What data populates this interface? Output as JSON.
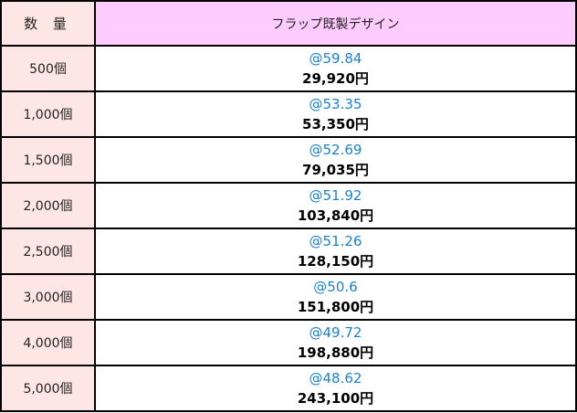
{
  "header": {
    "quantity": "数 量",
    "product": "フラップ既製デザイン"
  },
  "colors": {
    "quantity_bg": "#ffe6e6",
    "header_bg": "#ffccff",
    "unit_price": "#1a7fd0"
  },
  "rows": [
    {
      "qty": "500個",
      "unit": "@59.84",
      "total": "29,920円"
    },
    {
      "qty": "1,000個",
      "unit": "@53.35",
      "total": "53,350円"
    },
    {
      "qty": "1,500個",
      "unit": "@52.69",
      "total": "79,035円"
    },
    {
      "qty": "2,000個",
      "unit": "@51.92",
      "total": "103,840円"
    },
    {
      "qty": "2,500個",
      "unit": "@51.26",
      "total": "128,150円"
    },
    {
      "qty": "3,000個",
      "unit": "@50.6",
      "total": "151,800円"
    },
    {
      "qty": "4,000個",
      "unit": "@49.72",
      "total": "198,880円"
    },
    {
      "qty": "5,000個",
      "unit": "@48.62",
      "total": "243,100円"
    }
  ]
}
